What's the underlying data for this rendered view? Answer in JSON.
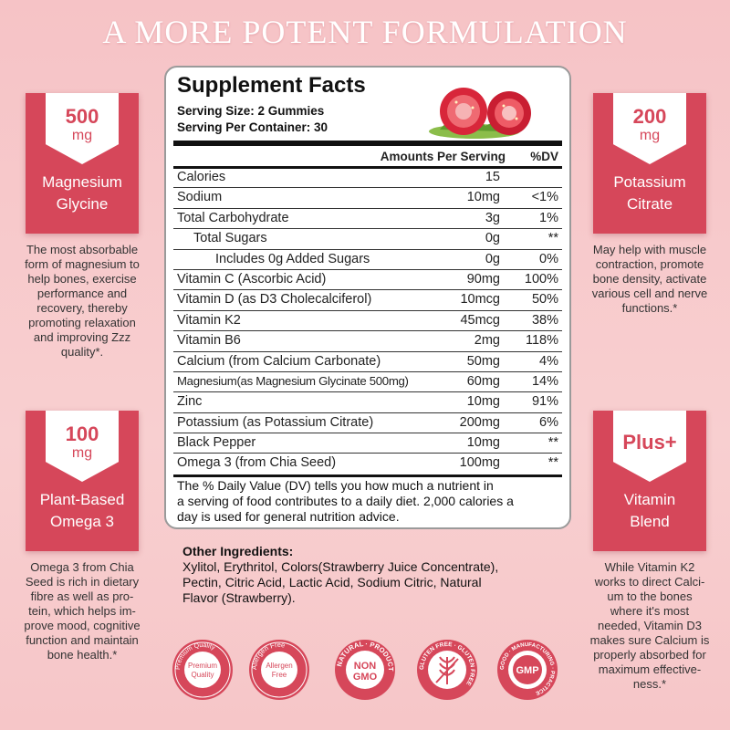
{
  "headline": "A MORE POTENT FORMULATION",
  "cards": {
    "tl": {
      "num": "500",
      "unit": "mg",
      "title1": "Magnesium",
      "title2": "Glycine",
      "desc": [
        "The most absorbable",
        "form of magnesium to",
        "help bones, exercise",
        "performance and",
        "recovery, thereby",
        "promoting relaxation",
        "and improving Zzz",
        "quality*."
      ]
    },
    "tr": {
      "num": "200",
      "unit": "mg",
      "title1": "Potassium",
      "title2": "Citrate",
      "desc": [
        "May help with muscle",
        "contraction, promote",
        "bone density, activate",
        "various cell and nerve",
        "functions.*"
      ]
    },
    "bl": {
      "num": "100",
      "unit": "mg",
      "title1": "Plant-Based",
      "title2": "Omega 3",
      "desc": [
        "Omega 3 from Chia",
        "Seed is rich in dietary",
        "fibre as well as pro-",
        "tein, which helps im-",
        "prove mood, cognitive",
        "function and maintain",
        "bone health.*"
      ]
    },
    "br": {
      "plus": "Plus+",
      "title1": "Vitamin",
      "title2": "Blend",
      "desc": [
        "While Vitamin K2",
        "works to direct Calci-",
        "um to the bones",
        "where it's most",
        "needed, Vitamin D3",
        "makes sure Calcium is",
        "properly absorbed for",
        "maximum effective-",
        "ness.*"
      ]
    }
  },
  "facts": {
    "title": "Supplement Facts",
    "serving_size": "Serving Size: 2 Gummies",
    "serving_per": "Serving Per Container: 30",
    "col_amount": "Amounts Per Serving",
    "col_dv": "%DV",
    "rows": [
      {
        "name": "Calories",
        "amount": "15",
        "dv": ""
      },
      {
        "name": "Sodium",
        "amount": "10mg",
        "dv": "<1%"
      },
      {
        "name": "Total Carbohydrate",
        "amount": "3g",
        "dv": "1%"
      },
      {
        "name": "Total Sugars",
        "amount": "0g",
        "dv": "**"
      },
      {
        "name": "Includes 0g Added Sugars",
        "amount": "0g",
        "dv": "0%"
      },
      {
        "name": "Vitamin C  (Ascorbic Acid)",
        "amount": "90mg",
        "dv": "100%"
      },
      {
        "name": "Vitamin D (as D3 Cholecalciferol)",
        "amount": "10mcg",
        "dv": "50%"
      },
      {
        "name": "Vitamin K2",
        "amount": "45mcg",
        "dv": "38%"
      },
      {
        "name": "Vitamin B6",
        "amount": "2mg",
        "dv": "118%"
      },
      {
        "name": "Calcium (from Calcium Carbonate)",
        "amount": "50mg",
        "dv": "4%"
      },
      {
        "name": "Magnesium(as Magnesium Glycinate 500mg)",
        "amount": "60mg",
        "dv": "14%"
      },
      {
        "name": "Zinc",
        "amount": "10mg",
        "dv": "91%"
      },
      {
        "name": "Potassium (as Potassium Citrate)",
        "amount": "200mg",
        "dv": "6%"
      },
      {
        "name": "Black Pepper",
        "amount": "10mg",
        "dv": "**"
      },
      {
        "name": "Omega 3 (from Chia Seed)",
        "amount": "100mg",
        "dv": "**"
      }
    ],
    "dv_note": [
      "The % Daily Value (DV) tells you how much a nutrient in",
      "a serving of food contributes to a daily diet. 2,000 calories a",
      "day is used for general nutrition advice."
    ]
  },
  "other": {
    "title": "Other Ingredients:",
    "lines": [
      "Xylitol, Erythritol, Colors(Strawberry Juice Concentrate),",
      "Pectin, Citric Acid, Lactic Acid, Sodium Citric, Natural",
      "Flavor (Strawberry)."
    ]
  },
  "badges": {
    "b1": {
      "ring": "Premium Quality",
      "center1": "Premium",
      "center2": "Quality"
    },
    "b2": {
      "ring": "Allergen Free",
      "center1": "Allergen",
      "center2": "Free"
    },
    "b3": {
      "ring": "NATURAL · PRODUCT",
      "center1": "NON",
      "center2": "GMO"
    },
    "b4": {
      "ring": "GLUTEN FREE · GLUTEN FREE"
    },
    "b5": {
      "ring": "GOOD · MANUFACTURING · PRACTICE",
      "center1": "GMP"
    }
  },
  "colors": {
    "accent": "#d6475a",
    "background": "#f7c9cb"
  }
}
